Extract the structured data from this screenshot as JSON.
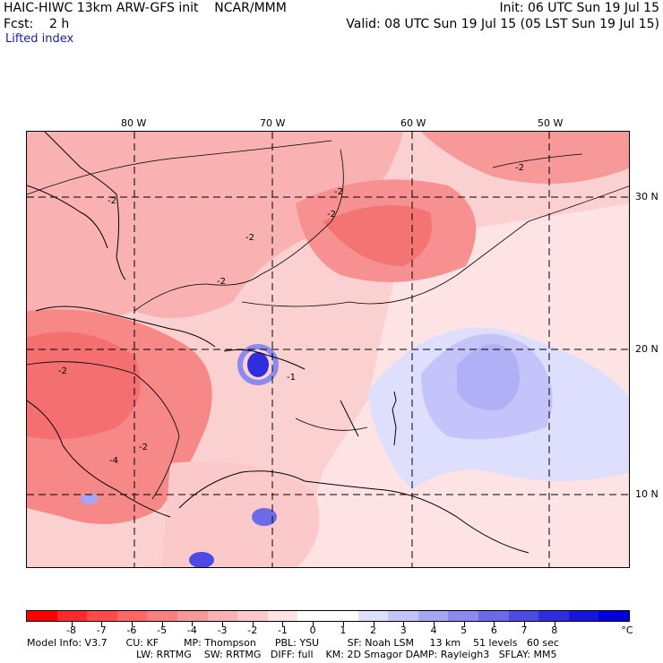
{
  "header": {
    "title_left": "HAIC-HIWC 13km ARW-GFS init    NCAR/MMM",
    "init": "Init: 06 UTC Sun 19 Jul 15",
    "fcst": "Fcst:    2 h",
    "valid": "Valid: 08 UTC Sun 19 Jul 15 (05 LST Sun 19 Jul 15)",
    "field": "Lifted index"
  },
  "map": {
    "lon_labels": [
      "80 W",
      "70 W",
      "60 W",
      "50 W"
    ],
    "lat_labels": [
      "30 N",
      "20 N",
      "10 N"
    ],
    "contour_labels": [
      "-2",
      "-2",
      "-2",
      "-2",
      "-2",
      "-2",
      "-1",
      "-2",
      "-4",
      "-2"
    ]
  },
  "colorbar": {
    "colors": [
      "#ff0000",
      "#ff2a2a",
      "#ff4a4a",
      "#ff6666",
      "#fa7f7f",
      "#f79999",
      "#f9b1b1",
      "#fbc9c9",
      "#fde3e3",
      "#ffffff",
      "#ffffff",
      "#dedefd",
      "#c4c4fa",
      "#a6a6f5",
      "#8a8af0",
      "#6b6bea",
      "#4c4ce5",
      "#2e2ee0",
      "#1414dc",
      "#0000dd"
    ],
    "tick_labels": [
      "-8",
      "-7",
      "-6",
      "-5",
      "-4",
      "-3",
      "-2",
      "-1",
      "0",
      "1",
      "2",
      "3",
      "4",
      "5",
      "6",
      "7",
      "8"
    ],
    "unit": "°C"
  },
  "footer": {
    "line1": "Model Info: V3.7      CU: KF        MP: Thompson      PBL: YSU         SF: Noah LSM     13 km    51 levels   60 sec",
    "line2": "LW: RRTMG    SW: RRTMG   DIFF: full    KM: 2D Smagor DAMP: Rayleigh3   SFLAY: MM5"
  },
  "colors": {
    "strong_red": "#f56a6a",
    "mid_red": "#f79999",
    "light_red": "#fbc9c9",
    "pale": "#fde3e3",
    "light_blue": "#c4c4fa",
    "blue": "#a6a6f5",
    "deep_blue": "#2e2ee0"
  }
}
